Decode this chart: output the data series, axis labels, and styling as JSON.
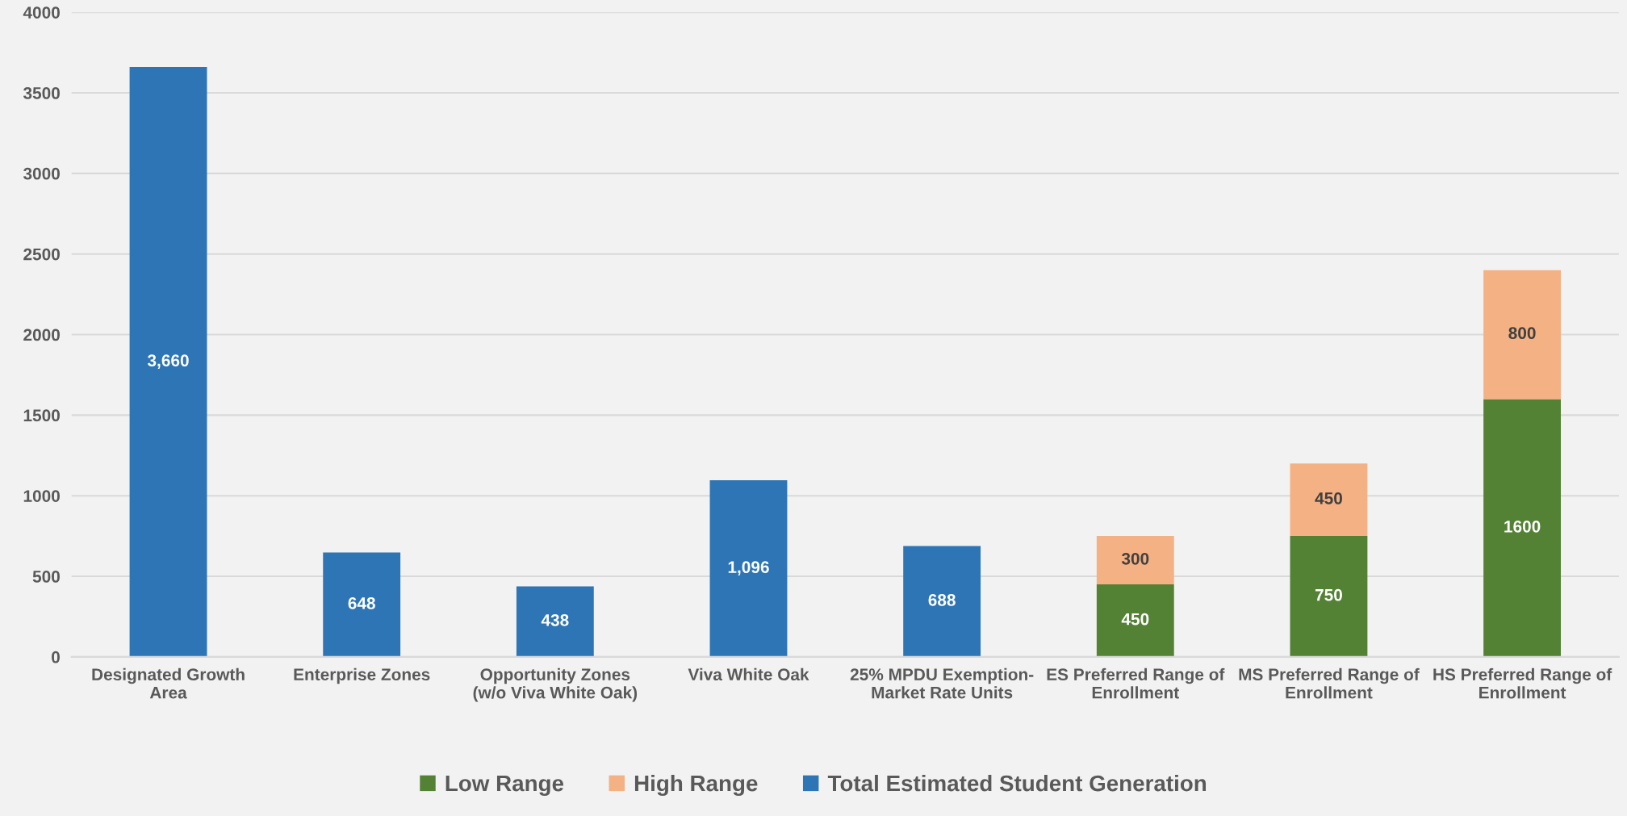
{
  "chart_data": {
    "type": "bar",
    "stacked": true,
    "categories": [
      "Designated Growth\nArea",
      "Enterprise Zones",
      "Opportunity Zones\n(w/o Viva White Oak)",
      "Viva White Oak",
      "25% MPDU Exemption-\nMarket Rate Units",
      "ES Preferred Range of\nEnrollment",
      "MS Preferred Range of\nEnrollment",
      "HS Preferred Range of\nEnrollment"
    ],
    "series": [
      {
        "name": "Low Range",
        "color": "#548235",
        "values": [
          null,
          null,
          null,
          null,
          null,
          450,
          750,
          1600
        ],
        "value_labels": [
          null,
          null,
          null,
          null,
          null,
          "450",
          "750",
          "1600"
        ]
      },
      {
        "name": "High Range",
        "color": "#f4b183",
        "values": [
          null,
          null,
          null,
          null,
          null,
          300,
          450,
          800
        ],
        "value_labels": [
          null,
          null,
          null,
          null,
          null,
          "300",
          "450",
          "800"
        ]
      },
      {
        "name": "Total Estimated Student Generation",
        "color": "#2e75b6",
        "values": [
          3660,
          648,
          438,
          1096,
          688,
          null,
          null,
          null
        ],
        "value_labels": [
          "3,660",
          "648",
          "438",
          "1,096",
          "688",
          null,
          null,
          null
        ]
      }
    ],
    "ylim": [
      0,
      4000
    ],
    "yticks": [
      0,
      500,
      1000,
      1500,
      2000,
      2500,
      3000,
      3500,
      4000
    ],
    "grid": "y",
    "legend": "bottom"
  }
}
